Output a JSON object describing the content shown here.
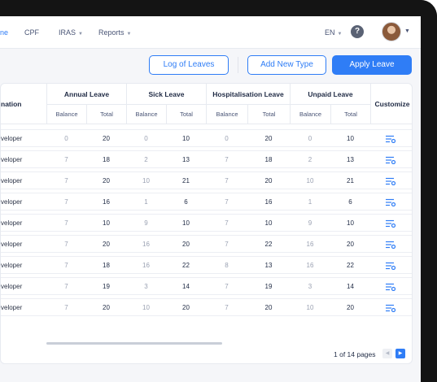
{
  "nav": {
    "items": [
      {
        "label": "ne",
        "active": true
      },
      {
        "label": "CPF",
        "active": false
      },
      {
        "label": "IRAS",
        "dropdown": true
      },
      {
        "label": "Reports",
        "dropdown": true
      }
    ],
    "language": "EN",
    "help": "?"
  },
  "actions": {
    "log_label": "Log of Leaves",
    "add_label": "Add New Type",
    "apply_label": "Apply Leave"
  },
  "table": {
    "first_header": "nation",
    "groups": [
      "Annual Leave",
      "Sick Leave",
      "Hospitalisation Leave",
      "Unpaid Leave"
    ],
    "sub_balance": "Balance",
    "sub_total": "Total",
    "customize_header": "Customize",
    "rows": [
      {
        "designation": "veloper",
        "cells": [
          "0",
          "20",
          "0",
          "10",
          "0",
          "20",
          "0",
          "10"
        ]
      },
      {
        "designation": "veloper",
        "cells": [
          "7",
          "18",
          "2",
          "13",
          "7",
          "18",
          "2",
          "13"
        ]
      },
      {
        "designation": "veloper",
        "cells": [
          "7",
          "20",
          "10",
          "21",
          "7",
          "20",
          "10",
          "21"
        ]
      },
      {
        "designation": "veloper",
        "cells": [
          "7",
          "16",
          "1",
          "6",
          "7",
          "16",
          "1",
          "6"
        ]
      },
      {
        "designation": "veloper",
        "cells": [
          "7",
          "10",
          "9",
          "10",
          "7",
          "10",
          "9",
          "10"
        ]
      },
      {
        "designation": "veloper",
        "cells": [
          "7",
          "20",
          "16",
          "20",
          "7",
          "22",
          "16",
          "20"
        ]
      },
      {
        "designation": "veloper",
        "cells": [
          "7",
          "18",
          "16",
          "22",
          "8",
          "13",
          "16",
          "22"
        ]
      },
      {
        "designation": "veloper",
        "cells": [
          "7",
          "19",
          "3",
          "14",
          "7",
          "19",
          "3",
          "14"
        ]
      },
      {
        "designation": "veloper",
        "cells": [
          "7",
          "20",
          "10",
          "20",
          "7",
          "20",
          "10",
          "20"
        ]
      }
    ]
  },
  "pagination": {
    "text": "1 of 14 pages",
    "prev": "◀",
    "next": "▶"
  },
  "colors": {
    "accent": "#2f7df6",
    "text": "#1f2a44",
    "muted": "#9aa1b2"
  }
}
